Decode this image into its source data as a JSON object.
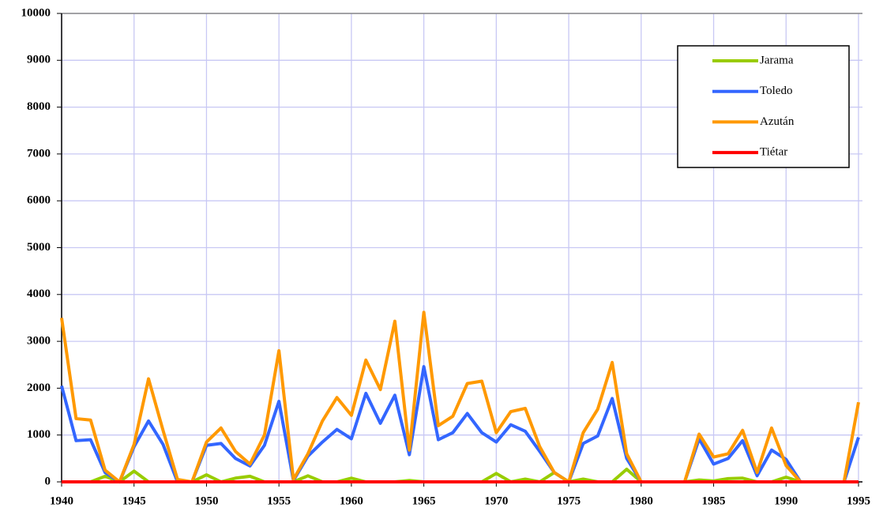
{
  "chart_data": {
    "type": "line",
    "x": [
      1940,
      1941,
      1942,
      1943,
      1944,
      1945,
      1946,
      1947,
      1948,
      1949,
      1950,
      1951,
      1952,
      1953,
      1954,
      1955,
      1956,
      1957,
      1958,
      1959,
      1960,
      1961,
      1962,
      1963,
      1964,
      1965,
      1966,
      1967,
      1968,
      1969,
      1970,
      1971,
      1972,
      1973,
      1974,
      1975,
      1976,
      1977,
      1978,
      1979,
      1980,
      1981,
      1982,
      1983,
      1984,
      1985,
      1986,
      1987,
      1988,
      1989,
      1990,
      1991,
      1992,
      1993,
      1994,
      1995
    ],
    "series": [
      {
        "name": "Jarama",
        "color": "#99cc00",
        "values": [
          0,
          0,
          0,
          120,
          0,
          230,
          0,
          0,
          0,
          0,
          150,
          0,
          80,
          120,
          0,
          0,
          0,
          130,
          0,
          0,
          80,
          0,
          0,
          0,
          30,
          0,
          0,
          0,
          0,
          0,
          180,
          0,
          60,
          0,
          200,
          0,
          60,
          0,
          0,
          270,
          0,
          0,
          0,
          0,
          40,
          20,
          70,
          80,
          0,
          0,
          100,
          0,
          0,
          0,
          0,
          0
        ]
      },
      {
        "name": "Toledo",
        "color": "#3366ff",
        "values": [
          2050,
          880,
          900,
          200,
          0,
          750,
          1300,
          800,
          0,
          0,
          780,
          820,
          500,
          340,
          780,
          1720,
          30,
          550,
          850,
          1120,
          920,
          1890,
          1250,
          1850,
          580,
          2460,
          900,
          1050,
          1460,
          1050,
          850,
          1220,
          1080,
          650,
          200,
          0,
          820,
          980,
          1780,
          500,
          0,
          0,
          0,
          0,
          920,
          380,
          500,
          880,
          130,
          680,
          480,
          0,
          0,
          0,
          0,
          950
        ]
      },
      {
        "name": "Azután",
        "color": "#ff9900",
        "values": [
          3500,
          1350,
          1320,
          250,
          0,
          800,
          2200,
          1100,
          50,
          0,
          850,
          1150,
          650,
          380,
          1000,
          2800,
          50,
          600,
          1300,
          1800,
          1420,
          2600,
          1970,
          3430,
          680,
          3620,
          1200,
          1400,
          2100,
          2150,
          1050,
          1500,
          1570,
          750,
          200,
          0,
          1050,
          1550,
          2550,
          600,
          0,
          0,
          0,
          0,
          1020,
          530,
          600,
          1100,
          200,
          1150,
          350,
          0,
          0,
          0,
          0,
          1700
        ]
      },
      {
        "name": "Tiétar",
        "color": "#ff0000",
        "values": [
          0,
          0,
          0,
          0,
          0,
          0,
          0,
          0,
          0,
          0,
          0,
          0,
          0,
          0,
          0,
          0,
          0,
          0,
          0,
          0,
          0,
          0,
          0,
          0,
          0,
          0,
          0,
          0,
          0,
          0,
          0,
          0,
          0,
          0,
          0,
          0,
          0,
          0,
          0,
          0,
          0,
          0,
          0,
          0,
          0,
          0,
          0,
          0,
          0,
          0,
          0,
          0,
          0,
          0,
          0,
          0
        ]
      }
    ],
    "xlim": [
      1940,
      1995
    ],
    "xticks": [
      1940,
      1945,
      1950,
      1955,
      1960,
      1965,
      1970,
      1975,
      1980,
      1985,
      1990,
      1995
    ],
    "ylim": [
      0,
      10000
    ],
    "yticks": [
      0,
      1000,
      2000,
      3000,
      4000,
      5000,
      6000,
      7000,
      8000,
      9000,
      10000
    ],
    "grid": true,
    "legend": "upper right"
  }
}
